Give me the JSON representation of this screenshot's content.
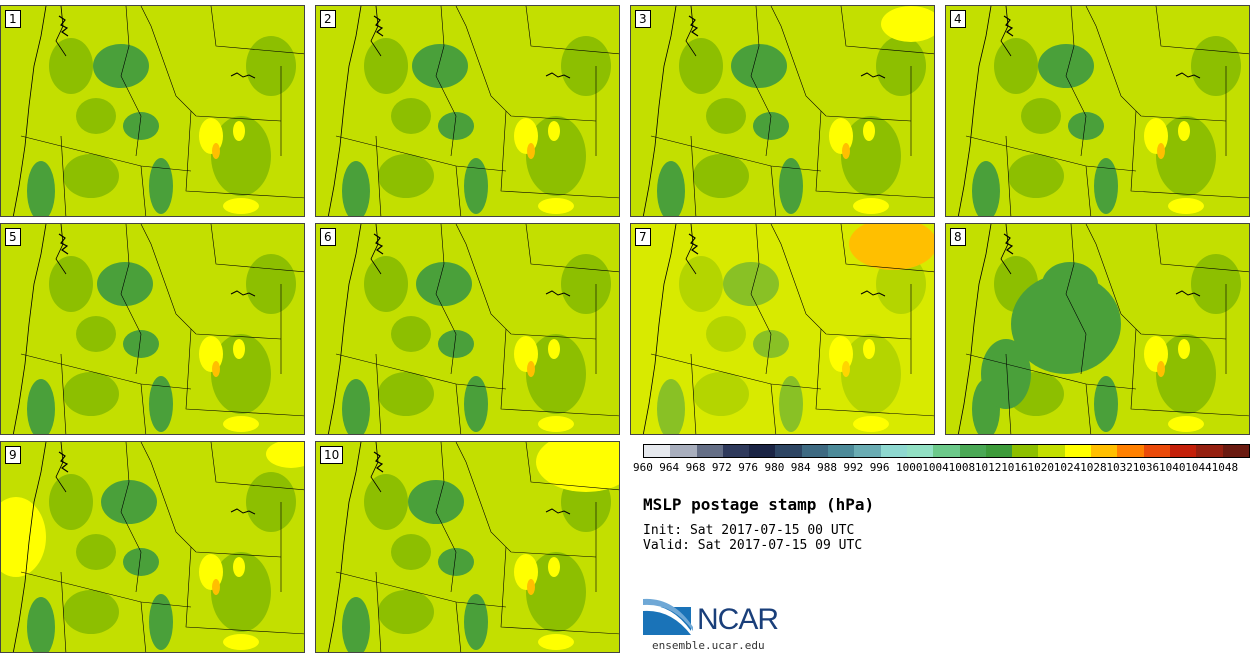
{
  "figure": {
    "title": "MSLP postage stamp (hPa)",
    "init_label": "Init: Sat 2017-07-15 00 UTC",
    "valid_label": "Valid: Sat 2017-07-15 09 UTC",
    "url": "ensemble.ucar.edu",
    "logo_text": "NCAR"
  },
  "members": [
    "1",
    "2",
    "3",
    "4",
    "5",
    "6",
    "7",
    "8",
    "9",
    "10"
  ],
  "colors": {
    "base": "#c3df00",
    "mid": "#8dbf00",
    "dark": "#4aa03a",
    "high": "#ffff00",
    "orange": "#ffbf00",
    "border": "#444444"
  },
  "colorbar": {
    "levels": [
      "960",
      "964",
      "968",
      "972",
      "976",
      "980",
      "984",
      "988",
      "992",
      "996",
      "1000",
      "1004",
      "1008",
      "1012",
      "1016",
      "1020",
      "1024",
      "1028",
      "1032",
      "1036",
      "1040",
      "1044",
      "1048"
    ],
    "colors": [
      "#e6e9ee",
      "#a8aebd",
      "#646e86",
      "#2f3a5c",
      "#1b2545",
      "#2d4563",
      "#3e6a82",
      "#4c8a99",
      "#6aacb3",
      "#8ed8d0",
      "#92e0c4",
      "#6cc98a",
      "#4aa855",
      "#3d9b3a",
      "#8dbf00",
      "#c3df00",
      "#ffff00",
      "#ffbf00",
      "#ff8000",
      "#ea4a0a",
      "#c4200a",
      "#952010",
      "#6a1a10"
    ]
  }
}
